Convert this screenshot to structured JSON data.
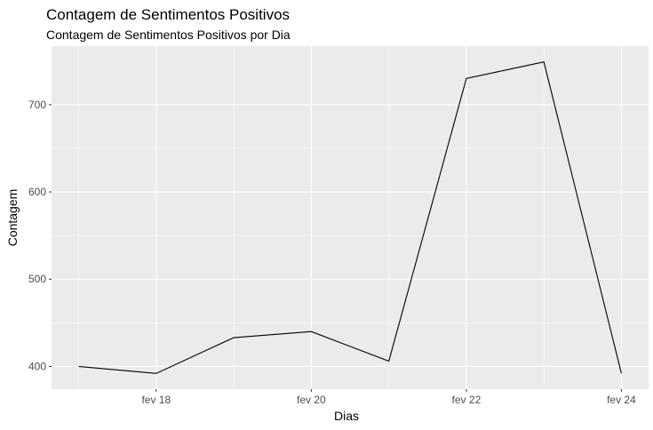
{
  "chart_data": {
    "type": "line",
    "title": "Contagem de Sentimentos Positivos",
    "subtitle": "Contagem de Sentimentos Positivos por Dia",
    "xlabel": "Dias",
    "ylabel": "Contagem",
    "x": [
      "2024-02-17",
      "2024-02-18",
      "2024-02-19",
      "2024-02-20",
      "2024-02-21",
      "2024-02-22",
      "2024-02-23",
      "2024-02-24"
    ],
    "values": [
      400,
      392,
      433,
      440,
      406,
      730,
      749,
      392
    ],
    "xticks": [
      "2024-02-18",
      "2024-02-20",
      "2024-02-22",
      "2024-02-24"
    ],
    "xtick_labels": [
      "fev 18",
      "fev 20",
      "fev 22",
      "fev 24"
    ],
    "yticks": [
      400,
      500,
      600,
      700
    ],
    "ytick_labels": [
      "400",
      "500",
      "600",
      "700"
    ],
    "ylim": [
      374,
      767
    ],
    "grid": true,
    "colors": {
      "panel": "#ebebeb",
      "grid": "#ffffff",
      "line": "#000000"
    }
  }
}
